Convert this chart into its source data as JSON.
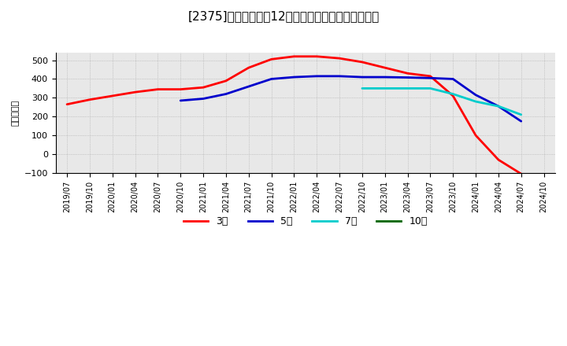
{
  "title": "[2375]　当期純利益12か月移動合計の平均値の推移",
  "ylabel": "（百万円）",
  "ylim": [
    -100,
    540
  ],
  "yticks": [
    -100,
    0,
    100,
    200,
    300,
    400,
    500
  ],
  "background_color": "#ffffff",
  "plot_bg_color": "#f0f0f0",
  "grid_color": "#aaaaaa",
  "x_labels": [
    "2019/07",
    "2019/10",
    "2020/01",
    "2020/04",
    "2020/07",
    "2020/10",
    "2021/01",
    "2021/04",
    "2021/07",
    "2021/10",
    "2022/01",
    "2022/04",
    "2022/07",
    "2022/10",
    "2023/01",
    "2023/04",
    "2023/07",
    "2023/10",
    "2024/01",
    "2024/04",
    "2024/07",
    "2024/10"
  ],
  "series": {
    "3year": {
      "color": "#ff0000",
      "label": "3年",
      "x": [
        0,
        1,
        2,
        3,
        4,
        5,
        6,
        7,
        8,
        9,
        10,
        11,
        12,
        13,
        14,
        15,
        16,
        17,
        18,
        19,
        20
      ],
      "y": [
        265,
        290,
        310,
        330,
        345,
        345,
        355,
        390,
        460,
        505,
        520,
        520,
        510,
        490,
        460,
        430,
        415,
        310,
        100,
        -30,
        -105
      ]
    },
    "5year": {
      "color": "#0000cc",
      "label": "5年",
      "x": [
        5,
        6,
        7,
        8,
        9,
        10,
        11,
        12,
        13,
        14,
        15,
        16,
        17,
        18,
        19,
        20
      ],
      "y": [
        285,
        295,
        320,
        360,
        400,
        410,
        415,
        415,
        410,
        410,
        408,
        405,
        400,
        315,
        255,
        175
      ]
    },
    "7year": {
      "color": "#00cccc",
      "label": "7年",
      "x": [
        13,
        14,
        15,
        16,
        17,
        18,
        19,
        20
      ],
      "y": [
        350,
        350,
        350,
        350,
        320,
        280,
        255,
        210
      ]
    },
    "10year": {
      "color": "#006600",
      "label": "10年",
      "x": [],
      "y": []
    }
  },
  "legend_entries": [
    "3年",
    "5年",
    "7年",
    "10年"
  ],
  "legend_colors": [
    "#ff0000",
    "#0000cc",
    "#00cccc",
    "#006600"
  ]
}
